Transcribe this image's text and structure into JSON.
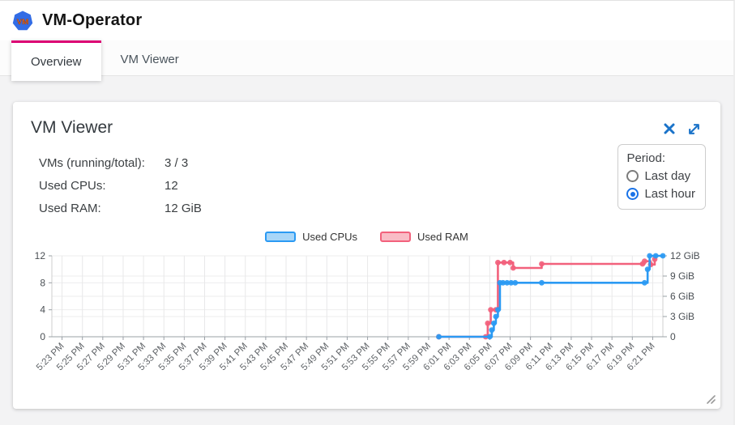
{
  "header": {
    "title": "VM-Operator",
    "logo_text": "VM"
  },
  "tabs": [
    {
      "label": "Overview",
      "active": true
    },
    {
      "label": "VM Viewer",
      "active": false
    }
  ],
  "card": {
    "title": "VM Viewer",
    "stats": [
      {
        "label": "VMs (running/total):",
        "value": "3 / 3"
      },
      {
        "label": "Used CPUs:",
        "value": "12"
      },
      {
        "label": "Used RAM:",
        "value": "12 GiB"
      }
    ],
    "period": {
      "label": "Period:",
      "options": [
        {
          "label": "Last day",
          "selected": false
        },
        {
          "label": "Last hour",
          "selected": true
        }
      ]
    }
  },
  "colors": {
    "accent": "#dc0073",
    "icon_blue": "#1a73c9",
    "cpu_line": "#2b9af3",
    "cpu_fill": "#a8d6f8",
    "ram_line": "#f2617c",
    "ram_fill": "#f9bcc6",
    "radio_selected": "#1a73e8"
  },
  "chart_data": {
    "type": "line",
    "step": true,
    "x_axis": {
      "start": "5:22 PM",
      "end": "6:22 PM",
      "first_tick_offset_min": 1,
      "tick_interval_min": 2,
      "tick_labels": [
        "5:23 PM",
        "5:25 PM",
        "5:27 PM",
        "5:29 PM",
        "5:31 PM",
        "5:33 PM",
        "5:35 PM",
        "5:37 PM",
        "5:39 PM",
        "5:41 PM",
        "5:43 PM",
        "5:45 PM",
        "5:47 PM",
        "5:49 PM",
        "5:51 PM",
        "5:53 PM",
        "5:55 PM",
        "5:57 PM",
        "5:59 PM",
        "6:01 PM",
        "6:03 PM",
        "6:05 PM",
        "6:07 PM",
        "6:09 PM",
        "6:11 PM",
        "6:13 PM",
        "6:15 PM",
        "6:17 PM",
        "6:19 PM",
        "6:21 PM"
      ]
    },
    "y_axis_left": {
      "range": [
        0,
        12
      ],
      "ticks": [
        {
          "v": 0,
          "label": "0"
        },
        {
          "v": 4,
          "label": "4"
        },
        {
          "v": 8,
          "label": "8"
        },
        {
          "v": 12,
          "label": "12"
        }
      ]
    },
    "y_axis_right": {
      "range": [
        0,
        12
      ],
      "ticks": [
        {
          "v": 0,
          "label": "0"
        },
        {
          "v": 3,
          "label": "3 GiB"
        },
        {
          "v": 6,
          "label": "6 GiB"
        },
        {
          "v": 9,
          "label": "9 GiB"
        },
        {
          "v": 12,
          "label": "12 GiB"
        }
      ]
    },
    "x_unit_note": "point x = minutes after 5:22 PM",
    "series": [
      {
        "name": "Used RAM",
        "axis": "right",
        "color": "#f2617c",
        "fill": "#f9bcc6",
        "points": [
          [
            38,
            0
          ],
          [
            42.6,
            0
          ],
          [
            42.8,
            2
          ],
          [
            43.1,
            4
          ],
          [
            43.6,
            4
          ],
          [
            43.8,
            11
          ],
          [
            44.4,
            11
          ],
          [
            45,
            11
          ],
          [
            45.3,
            10.2
          ],
          [
            48.1,
            10.8
          ],
          [
            58,
            10.8
          ],
          [
            58.2,
            11.2
          ],
          [
            58.8,
            10.7
          ],
          [
            59.2,
            11.5
          ]
        ]
      },
      {
        "name": "Used CPUs",
        "axis": "left",
        "color": "#2b9af3",
        "fill": "#a8d6f8",
        "points": [
          [
            38,
            0
          ],
          [
            43,
            0
          ],
          [
            43.2,
            1
          ],
          [
            43.4,
            2
          ],
          [
            43.6,
            3
          ],
          [
            43.8,
            4
          ],
          [
            44,
            8
          ],
          [
            44.3,
            8
          ],
          [
            44.7,
            8
          ],
          [
            45.1,
            8
          ],
          [
            45.5,
            8
          ],
          [
            48.1,
            8
          ],
          [
            58.2,
            8
          ],
          [
            58.5,
            10
          ],
          [
            58.7,
            12
          ],
          [
            59.3,
            12
          ],
          [
            60,
            12
          ]
        ]
      }
    ]
  }
}
